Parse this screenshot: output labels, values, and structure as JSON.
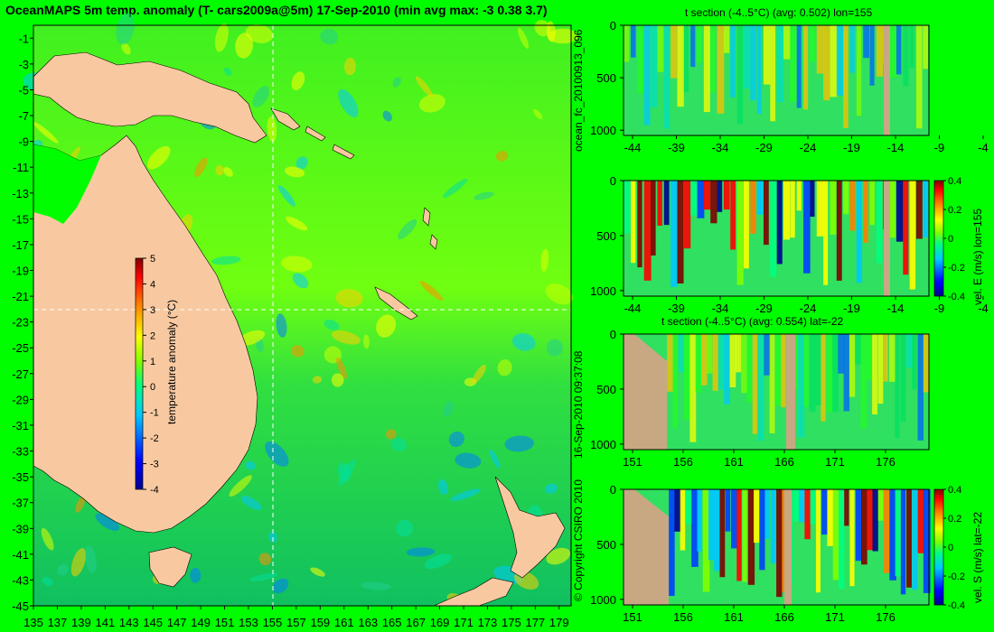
{
  "title": "OceanMAPS 5m temp. anomaly (T- cars2009a@5m) 17-Sep-2010 (min avg max: -3 0.38 3.7)",
  "side_labels": {
    "forecast": "ocean_fc_20100913_096",
    "timestamp": "16-Sep-2010 09:37:08",
    "copyright": "© Copyright CSIRO 2010"
  },
  "colors": {
    "background": "#00fe00",
    "land": "#f8c9a0",
    "section_land": "#c8a882"
  },
  "chart_data": [
    {
      "id": "map",
      "type": "heatmap",
      "title": "OceanMAPS 5m temp. anomaly (T- cars2009a@5m) 17-Sep-2010 (min avg max: -3 0.38 3.7)",
      "x_ticks": [
        "135",
        "137",
        "139",
        "141",
        "143",
        "145",
        "147",
        "149",
        "151",
        "153",
        "155",
        "157",
        "159",
        "161",
        "163",
        "165",
        "167",
        "169",
        "171",
        "173",
        "175",
        "177",
        "179"
      ],
      "y_ticks": [
        "-1",
        "-3",
        "-5",
        "-7",
        "-9",
        "-11",
        "-13",
        "-15",
        "-17",
        "-19",
        "-21",
        "-23",
        "-25",
        "-27",
        "-29",
        "-31",
        "-33",
        "-35",
        "-37",
        "-39",
        "-41",
        "-43",
        "-45"
      ],
      "xlim": [
        135,
        180
      ],
      "ylim": [
        -45,
        0
      ],
      "crosshair": {
        "lon": 155,
        "lat": -22
      },
      "colorbar": {
        "label": "temperature anomaly (°C)",
        "ticks": [
          "5",
          "4",
          "3",
          "2",
          "1",
          "0",
          "-1",
          "-2",
          "-3",
          "-4"
        ],
        "range": [
          -4,
          5
        ]
      }
    },
    {
      "id": "section1",
      "type": "heatmap",
      "title": "t section (-4..5°C) (avg: 0.502) lon=155",
      "x_ticks": [
        "-44",
        "-39",
        "-34",
        "-29",
        "-24",
        "-19",
        "-14",
        "-9",
        "-4"
      ],
      "y_ticks": [
        "0",
        "500",
        "1000"
      ]
    },
    {
      "id": "section2",
      "type": "heatmap",
      "title": "",
      "x_ticks": [
        "-44",
        "-39",
        "-34",
        "-29",
        "-24",
        "-19",
        "-14",
        "-9",
        "-4"
      ],
      "y_ticks": [
        "0",
        "500",
        "1000"
      ],
      "colorbar": {
        "label": "vel. E (m/s) lon=155",
        "ticks": [
          "0.4",
          "0.2",
          "0",
          "-0.2",
          "-0.4"
        ],
        "range": [
          -0.4,
          0.4
        ]
      }
    },
    {
      "id": "section3",
      "type": "heatmap",
      "title": "t section (-4..5°C) (avg: 0.554) lat=-22",
      "x_ticks": [
        "151",
        "156",
        "161",
        "166",
        "171",
        "176"
      ],
      "y_ticks": [
        "0",
        "500",
        "1000"
      ]
    },
    {
      "id": "section4",
      "type": "heatmap",
      "title": "",
      "x_ticks": [
        "151",
        "156",
        "161",
        "166",
        "171",
        "176"
      ],
      "y_ticks": [
        "0",
        "500",
        "1000"
      ],
      "colorbar": {
        "label": "vel. S (m/s) lat=-22",
        "ticks": [
          "0.4",
          "0.2",
          "0",
          "-0.2",
          "-0.4"
        ],
        "range": [
          -0.4,
          0.4
        ]
      }
    }
  ]
}
